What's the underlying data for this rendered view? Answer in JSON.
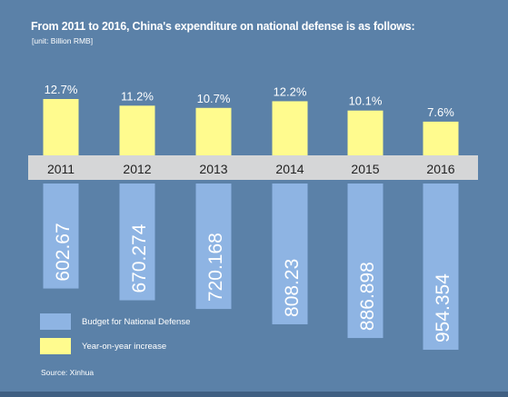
{
  "title": "From 2011 to 2016, China's expenditure on national defense is as follows:",
  "unit": "[unit: Billion RMB]",
  "source": "Source: Xinhua",
  "colors": {
    "background": "#5b81a8",
    "budget_bar": "#8eb4e3",
    "increase_bar": "#fffb8e",
    "year_band": "#d5d6d7"
  },
  "legend": [
    {
      "label": "Budget for National Defense",
      "color": "#8eb4e3"
    },
    {
      "label": "Year-on-year increase",
      "color": "#fffb8e"
    }
  ],
  "chart_data": {
    "type": "bar",
    "categories": [
      "2011",
      "2012",
      "2013",
      "2014",
      "2015",
      "2016"
    ],
    "series": [
      {
        "name": "Budget for National Defense",
        "values": [
          602.67,
          670.274,
          720.168,
          808.23,
          886.898,
          954.354
        ],
        "labels": [
          "602.67",
          "670.274",
          "720.168",
          "808.23",
          "886.898",
          "954.354"
        ]
      },
      {
        "name": "Year-on-year increase",
        "values": [
          12.7,
          11.2,
          10.7,
          12.2,
          10.1,
          7.6
        ],
        "labels": [
          "12.7%",
          "11.2%",
          "10.7%",
          "12.2%",
          "10.1%",
          "7.6%"
        ]
      }
    ],
    "title": "From 2011 to 2016, China's expenditure on national defense is as follows:",
    "subtitle": "[unit: Billion RMB]",
    "legend_position": "bottom-left",
    "grid": false
  }
}
